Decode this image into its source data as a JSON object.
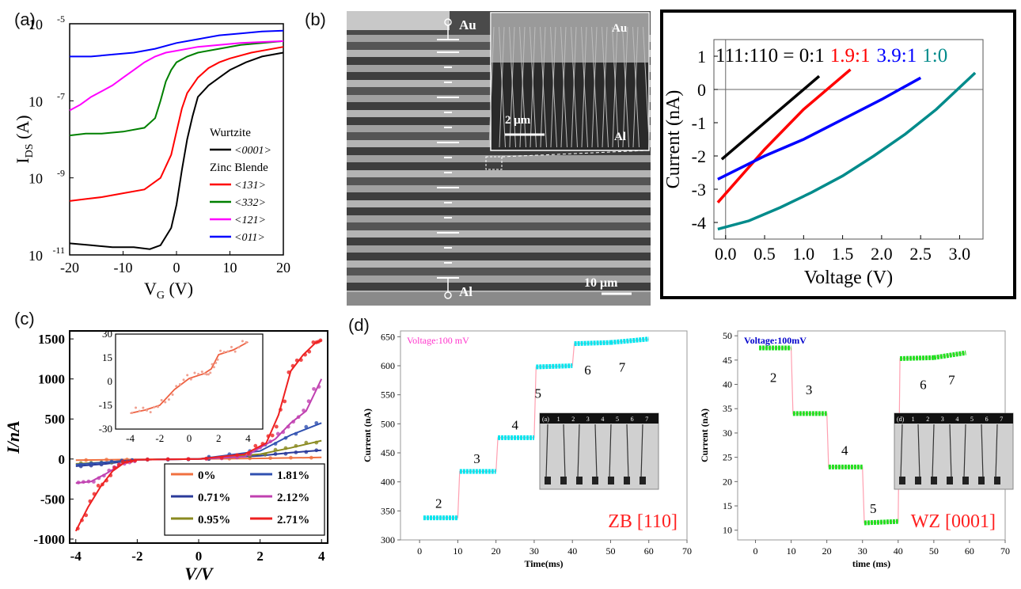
{
  "panel_labels": {
    "a": "(a)",
    "b": "(b)",
    "c": "(c)",
    "d": "(d)"
  },
  "sem": {
    "label_au": "Au",
    "label_al": "Al",
    "scale_main": "10 μm",
    "inset_au": "Au",
    "inset_al": "Al",
    "scale_inset": "2 μm"
  },
  "chart_data": [
    {
      "id": "a",
      "type": "line",
      "title": "",
      "xlabel_main": "V",
      "xlabel_sub": "G",
      "xlabel_unit": " (V)",
      "ylabel_main": "I",
      "ylabel_sub": "DS",
      "ylabel_unit": " (A)",
      "xlim": [
        -20,
        20
      ],
      "ylim_log10": [
        -11,
        -5
      ],
      "x_ticks": [
        "-20",
        "-10",
        "0",
        "10",
        "20"
      ],
      "y_ticks": [
        {
          "base": "10",
          "exp": "-11"
        },
        {
          "base": "10",
          "exp": "-9"
        },
        {
          "base": "10",
          "exp": "-7"
        },
        {
          "base": "10",
          "exp": "-5"
        }
      ],
      "legend_groups": [
        {
          "heading": "Wurtzite",
          "entries": [
            "<0001>"
          ]
        },
        {
          "heading": "Zinc Blende",
          "entries": [
            "<131>",
            "<332>",
            "<121>",
            "<011>"
          ]
        }
      ],
      "series": [
        {
          "name": "<0001>",
          "color": "#000000",
          "x": [
            -20,
            -16,
            -12,
            -8,
            -5,
            -3,
            -1,
            0,
            1,
            2,
            3,
            4,
            6,
            8,
            10,
            13,
            16,
            20
          ],
          "log10y": [
            -10.7,
            -10.75,
            -10.8,
            -10.8,
            -10.85,
            -10.75,
            -10.3,
            -9.7,
            -8.8,
            -8.0,
            -7.4,
            -6.9,
            -6.6,
            -6.4,
            -6.2,
            -6.0,
            -5.85,
            -5.75
          ]
        },
        {
          "name": "<131>",
          "color": "#ff0000",
          "x": [
            -20,
            -17,
            -14,
            -10,
            -6,
            -3,
            -1,
            0,
            1,
            2,
            4,
            6,
            8,
            10,
            14,
            20
          ],
          "log10y": [
            -9.6,
            -9.55,
            -9.5,
            -9.4,
            -9.3,
            -9.0,
            -8.4,
            -7.8,
            -7.2,
            -6.8,
            -6.4,
            -6.15,
            -6.0,
            -5.9,
            -5.75,
            -5.6
          ]
        },
        {
          "name": "<332>",
          "color": "#008000",
          "x": [
            -20,
            -17,
            -14,
            -10,
            -6,
            -4,
            -3,
            -2,
            -1,
            0,
            2,
            4,
            8,
            12,
            20
          ],
          "log10y": [
            -7.9,
            -7.85,
            -7.85,
            -7.8,
            -7.7,
            -7.45,
            -7.0,
            -6.5,
            -6.2,
            -6.0,
            -5.85,
            -5.75,
            -5.65,
            -5.55,
            -5.45
          ]
        },
        {
          "name": "<121>",
          "color": "#ff00ff",
          "x": [
            -20,
            -18,
            -16,
            -14,
            -12,
            -10,
            -8,
            -6,
            -4,
            -2,
            0,
            4,
            8,
            12,
            20
          ],
          "log10y": [
            -7.25,
            -7.1,
            -6.9,
            -6.75,
            -6.6,
            -6.4,
            -6.2,
            -6.0,
            -5.85,
            -5.75,
            -5.7,
            -5.6,
            -5.55,
            -5.5,
            -5.45
          ]
        },
        {
          "name": "<011>",
          "color": "#0000ff",
          "x": [
            -20,
            -16,
            -12,
            -8,
            -4,
            0,
            4,
            8,
            12,
            16,
            20
          ],
          "log10y": [
            -5.85,
            -5.85,
            -5.8,
            -5.75,
            -5.65,
            -5.5,
            -5.4,
            -5.3,
            -5.25,
            -5.2,
            -5.18
          ]
        }
      ]
    },
    {
      "id": "b",
      "type": "line",
      "title": "",
      "xlabel": "Voltage (V)",
      "ylabel": "Current (nA)",
      "xlim": [
        -0.15,
        3.3
      ],
      "ylim": [
        -4.5,
        1.5
      ],
      "x_ticks": [
        "0.0",
        "0.5",
        "1.0",
        "1.5",
        "2.0",
        "2.5",
        "3.0"
      ],
      "y_ticks": [
        "-4",
        "-3",
        "-2",
        "-1",
        "0",
        "1"
      ],
      "ratio_prefix": "111:110 = ",
      "series": [
        {
          "name": "0:1",
          "color": "#000000",
          "x": [
            -0.05,
            1.2
          ],
          "y": [
            -2.1,
            0.4
          ]
        },
        {
          "name": "1.9:1",
          "color": "#ff0000",
          "x": [
            -0.1,
            0.5,
            1.0,
            1.6
          ],
          "y": [
            -3.4,
            -1.8,
            -0.6,
            0.6
          ]
        },
        {
          "name": "3.9:1",
          "color": "#0000ff",
          "x": [
            -0.1,
            0.5,
            1.0,
            1.5,
            2.0,
            2.5
          ],
          "y": [
            -2.7,
            -2.0,
            -1.5,
            -0.9,
            -0.3,
            0.35
          ]
        },
        {
          "name": "1:0",
          "color": "#008b8b",
          "x": [
            -0.1,
            0.3,
            0.7,
            1.1,
            1.5,
            1.9,
            2.3,
            2.7,
            3.2
          ],
          "y": [
            -4.2,
            -3.95,
            -3.55,
            -3.1,
            -2.6,
            -2.0,
            -1.35,
            -0.6,
            0.5
          ]
        }
      ]
    },
    {
      "id": "c",
      "type": "scatter",
      "title": "",
      "xlabel": "V/V",
      "ylabel": "I/nA",
      "xlim": [
        -4.2,
        4.2
      ],
      "ylim": [
        -1050,
        1600
      ],
      "x_ticks": [
        "-4",
        "-2",
        "0",
        "2",
        "4"
      ],
      "y_ticks": [
        "-1000",
        "-500",
        "0",
        "500",
        "1000",
        "1500"
      ],
      "legend": [
        "0%",
        "0.71%",
        "0.95%",
        "1.81%",
        "2.12%",
        "2.71%"
      ],
      "series": [
        {
          "name": "0%",
          "color": "#f07040",
          "x": [
            -4,
            -2,
            0,
            2,
            4
          ],
          "y": [
            -15,
            -5,
            0,
            8,
            20
          ]
        },
        {
          "name": "0.71%",
          "color": "#2a3a9a",
          "x": [
            -4,
            -3,
            -2,
            0,
            2,
            3,
            4
          ],
          "y": [
            -90,
            -60,
            -10,
            0,
            40,
            80,
            110
          ]
        },
        {
          "name": "0.95%",
          "color": "#8a8a20",
          "x": [
            -4,
            -3,
            -2,
            0,
            2,
            3,
            4
          ],
          "y": [
            -60,
            -40,
            -10,
            0,
            60,
            140,
            230
          ]
        },
        {
          "name": "1.81%",
          "color": "#3050b0",
          "x": [
            -4,
            -3,
            -2,
            0,
            2,
            3,
            4
          ],
          "y": [
            -70,
            -40,
            -10,
            0,
            100,
            300,
            450
          ]
        },
        {
          "name": "2.12%",
          "color": "#c040b0",
          "x": [
            -4,
            -3.5,
            -3,
            -2.5,
            -2,
            0,
            1.5,
            2.5,
            3,
            3.5,
            4
          ],
          "y": [
            -300,
            -280,
            -180,
            -60,
            -10,
            0,
            30,
            250,
            450,
            600,
            1000
          ]
        },
        {
          "name": "2.71%",
          "color": "#ee2020",
          "x": [
            -4,
            -3.6,
            -3.2,
            -2.8,
            -2.4,
            -2,
            0,
            1.5,
            2.2,
            2.6,
            3,
            3.4,
            3.8,
            4
          ],
          "y": [
            -900,
            -600,
            -350,
            -150,
            -40,
            -10,
            0,
            60,
            200,
            550,
            1100,
            1300,
            1450,
            1480
          ]
        }
      ],
      "inset": {
        "xlim": [
          -5,
          5
        ],
        "ylim": [
          -30,
          30
        ],
        "x_ticks": [
          "-4",
          "-2",
          "0",
          "2",
          "4"
        ],
        "y_ticks": [
          "-30",
          "-15",
          "0",
          "15",
          "30"
        ],
        "x": [
          -4,
          -3,
          -2,
          -1,
          0,
          1,
          1.5,
          2,
          3,
          4
        ],
        "y": [
          -20,
          -18,
          -15,
          -5,
          2,
          5,
          8,
          17,
          20,
          25
        ]
      }
    },
    {
      "id": "d1",
      "type": "line",
      "title": "Voltage:100 mV",
      "xlabel": "Time(ms)",
      "ylabel": "Current (nA)",
      "xlim": [
        -5,
        70
      ],
      "ylim": [
        300,
        660
      ],
      "x_ticks": [
        "0",
        "10",
        "20",
        "30",
        "40",
        "50",
        "60",
        "70"
      ],
      "y_ticks": [
        "300",
        "350",
        "400",
        "450",
        "500",
        "550",
        "600",
        "650"
      ],
      "annotation": "ZB [110]",
      "step_labels": [
        "2",
        "3",
        "4",
        "5",
        "6",
        "7"
      ],
      "step_label_pos": [
        [
          5,
          355
        ],
        [
          15,
          432
        ],
        [
          25,
          490
        ],
        [
          31,
          545
        ],
        [
          44,
          585
        ],
        [
          53,
          590
        ]
      ],
      "series": [
        {
          "name": "ZB [110]",
          "color": "#00e5ee",
          "x": [
            1,
            10,
            10.5,
            20,
            20.5,
            30,
            30.5,
            40,
            40.5,
            50,
            60
          ],
          "y": [
            338,
            338,
            418,
            418,
            476,
            476,
            598,
            600,
            638,
            640,
            646
          ]
        }
      ],
      "photo_labels": [
        "(a)",
        "1",
        "2",
        "3",
        "4",
        "5",
        "6",
        "7"
      ]
    },
    {
      "id": "d2",
      "type": "line",
      "title": "Voltage:100mV",
      "xlabel": "time (ms)",
      "ylabel": "Current (nA)",
      "xlim": [
        -5,
        70
      ],
      "ylim": [
        8,
        51
      ],
      "x_ticks": [
        "0",
        "10",
        "20",
        "30",
        "40",
        "50",
        "60",
        "70"
      ],
      "y_ticks": [
        "10",
        "15",
        "20",
        "25",
        "30",
        "35",
        "40",
        "45",
        "50"
      ],
      "annotation": "WZ [0001]",
      "step_labels": [
        "2",
        "3",
        "4",
        "5",
        "6",
        "7"
      ],
      "step_label_pos": [
        [
          5,
          40.5
        ],
        [
          15,
          38
        ],
        [
          25,
          25.5
        ],
        [
          33,
          13.5
        ],
        [
          47,
          39
        ],
        [
          55,
          40
        ]
      ],
      "series": [
        {
          "name": "WZ [0001]",
          "color": "#22e022",
          "x": [
            1,
            10,
            10.5,
            20,
            20.5,
            30,
            30.5,
            40,
            40.5,
            50,
            59
          ],
          "y": [
            47.5,
            47.5,
            34,
            34,
            23,
            23,
            11.5,
            11.8,
            45.3,
            45.5,
            46.5
          ]
        }
      ],
      "photo_labels": [
        "(d)",
        "1",
        "2",
        "3",
        "4",
        "5",
        "6",
        "7"
      ]
    }
  ]
}
